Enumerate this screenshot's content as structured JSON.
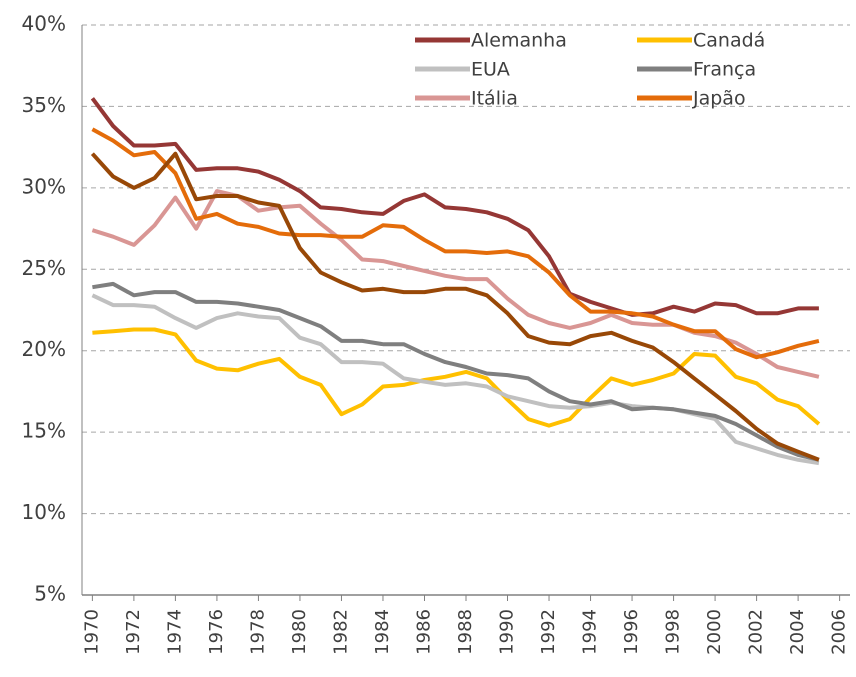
{
  "chart_data": {
    "type": "line",
    "x": [
      1970,
      1971,
      1972,
      1973,
      1974,
      1975,
      1976,
      1977,
      1978,
      1979,
      1980,
      1981,
      1982,
      1983,
      1984,
      1985,
      1986,
      1987,
      1988,
      1989,
      1990,
      1991,
      1992,
      1993,
      1994,
      1995,
      1996,
      1997,
      1998,
      1999,
      2000,
      2001,
      2002,
      2003,
      2004,
      2005
    ],
    "xlim": [
      1969.5,
      2006.5
    ],
    "xticks": [
      1970,
      1972,
      1974,
      1976,
      1978,
      1980,
      1982,
      1984,
      1986,
      1988,
      1990,
      1992,
      1994,
      1996,
      1998,
      2000,
      2002,
      2004,
      2006
    ],
    "ylim": [
      5,
      40
    ],
    "yticks": [
      {
        "value": 5,
        "label": "5%"
      },
      {
        "value": 10,
        "label": "10%"
      },
      {
        "value": 15,
        "label": "15%"
      },
      {
        "value": 20,
        "label": "20%"
      },
      {
        "value": 25,
        "label": "25%"
      },
      {
        "value": 30,
        "label": "30%"
      },
      {
        "value": 35,
        "label": "35%"
      },
      {
        "value": 40,
        "label": "40%"
      }
    ],
    "grid": true,
    "legend": "top-right",
    "series": [
      {
        "name": "Alemanha",
        "color": "#953735",
        "values": [
          35.5,
          33.8,
          32.6,
          32.6,
          32.7,
          31.1,
          31.2,
          31.2,
          31.0,
          30.5,
          29.8,
          28.8,
          28.7,
          28.5,
          28.4,
          29.2,
          29.6,
          28.8,
          28.7,
          28.5,
          28.1,
          27.4,
          25.8,
          23.5,
          23.0,
          22.6,
          22.2,
          22.3,
          22.7,
          22.4,
          22.9,
          22.8,
          22.3,
          22.3,
          22.6,
          22.6
        ]
      },
      {
        "name": "Canadá",
        "color": "#ffc000",
        "values": [
          21.1,
          21.2,
          21.3,
          21.3,
          21.0,
          19.4,
          18.9,
          18.8,
          19.2,
          19.5,
          18.4,
          17.9,
          16.1,
          16.7,
          17.8,
          17.9,
          18.2,
          18.4,
          18.7,
          18.3,
          17.0,
          15.8,
          15.4,
          15.8,
          17.1,
          18.3,
          17.9,
          18.2,
          18.6,
          19.8,
          19.7,
          18.4,
          18.0,
          17.0,
          16.6,
          15.5
        ]
      },
      {
        "name": "EUA",
        "color": "#c0c0c0",
        "values": [
          23.4,
          22.8,
          22.8,
          22.7,
          22.0,
          21.4,
          22.0,
          22.3,
          22.1,
          22.0,
          20.8,
          20.4,
          19.3,
          19.3,
          19.2,
          18.3,
          18.1,
          17.9,
          18.0,
          17.8,
          17.2,
          16.9,
          16.6,
          16.5,
          16.6,
          16.8,
          16.6,
          16.5,
          16.4,
          16.1,
          15.8,
          14.4,
          14.0,
          13.6,
          13.3,
          13.1
        ]
      },
      {
        "name": "França",
        "color": "#7f7f7f",
        "values": [
          23.9,
          24.1,
          23.4,
          23.6,
          23.6,
          23.0,
          23.0,
          22.9,
          22.7,
          22.5,
          22.0,
          21.5,
          20.6,
          20.6,
          20.4,
          20.4,
          19.8,
          19.3,
          19.0,
          18.6,
          18.5,
          18.3,
          17.5,
          16.9,
          16.7,
          16.9,
          16.4,
          16.5,
          16.4,
          16.2,
          16.0,
          15.5,
          14.8,
          14.1,
          13.6,
          13.3
        ]
      },
      {
        "name": "Itália",
        "color": "#d99694",
        "values": [
          27.4,
          27.0,
          26.5,
          27.7,
          29.4,
          27.5,
          29.8,
          29.5,
          28.6,
          28.8,
          28.9,
          27.8,
          26.8,
          25.6,
          25.5,
          25.2,
          24.9,
          24.6,
          24.4,
          24.4,
          23.2,
          22.2,
          21.7,
          21.4,
          21.7,
          22.2,
          21.7,
          21.6,
          21.6,
          21.1,
          20.9,
          20.5,
          19.8,
          19.0,
          18.7,
          18.4
        ]
      },
      {
        "name": "Japão",
        "color": "#e46c0a",
        "values": [
          33.6,
          32.9,
          32.0,
          32.2,
          30.9,
          28.1,
          28.4,
          27.8,
          27.6,
          27.2,
          27.1,
          27.1,
          27.0,
          27.0,
          27.7,
          27.6,
          26.8,
          26.1,
          26.1,
          26.0,
          26.1,
          25.8,
          24.8,
          23.4,
          22.4,
          22.4,
          22.3,
          22.1,
          21.6,
          21.2,
          21.2,
          20.1,
          19.6,
          19.9,
          20.3,
          20.6
        ]
      },
      {
        "color": "#984807",
        "values": [
          32.1,
          30.7,
          30.0,
          30.6,
          32.1,
          29.3,
          29.5,
          29.5,
          29.1,
          28.9,
          26.3,
          24.8,
          24.2,
          23.7,
          23.8,
          23.6,
          23.6,
          23.8,
          23.8,
          23.4,
          22.3,
          20.9,
          20.5,
          20.4,
          20.9,
          21.1,
          20.6,
          20.2,
          19.3,
          18.3,
          17.3,
          16.3,
          15.2,
          14.3,
          13.8,
          13.3
        ]
      }
    ]
  }
}
